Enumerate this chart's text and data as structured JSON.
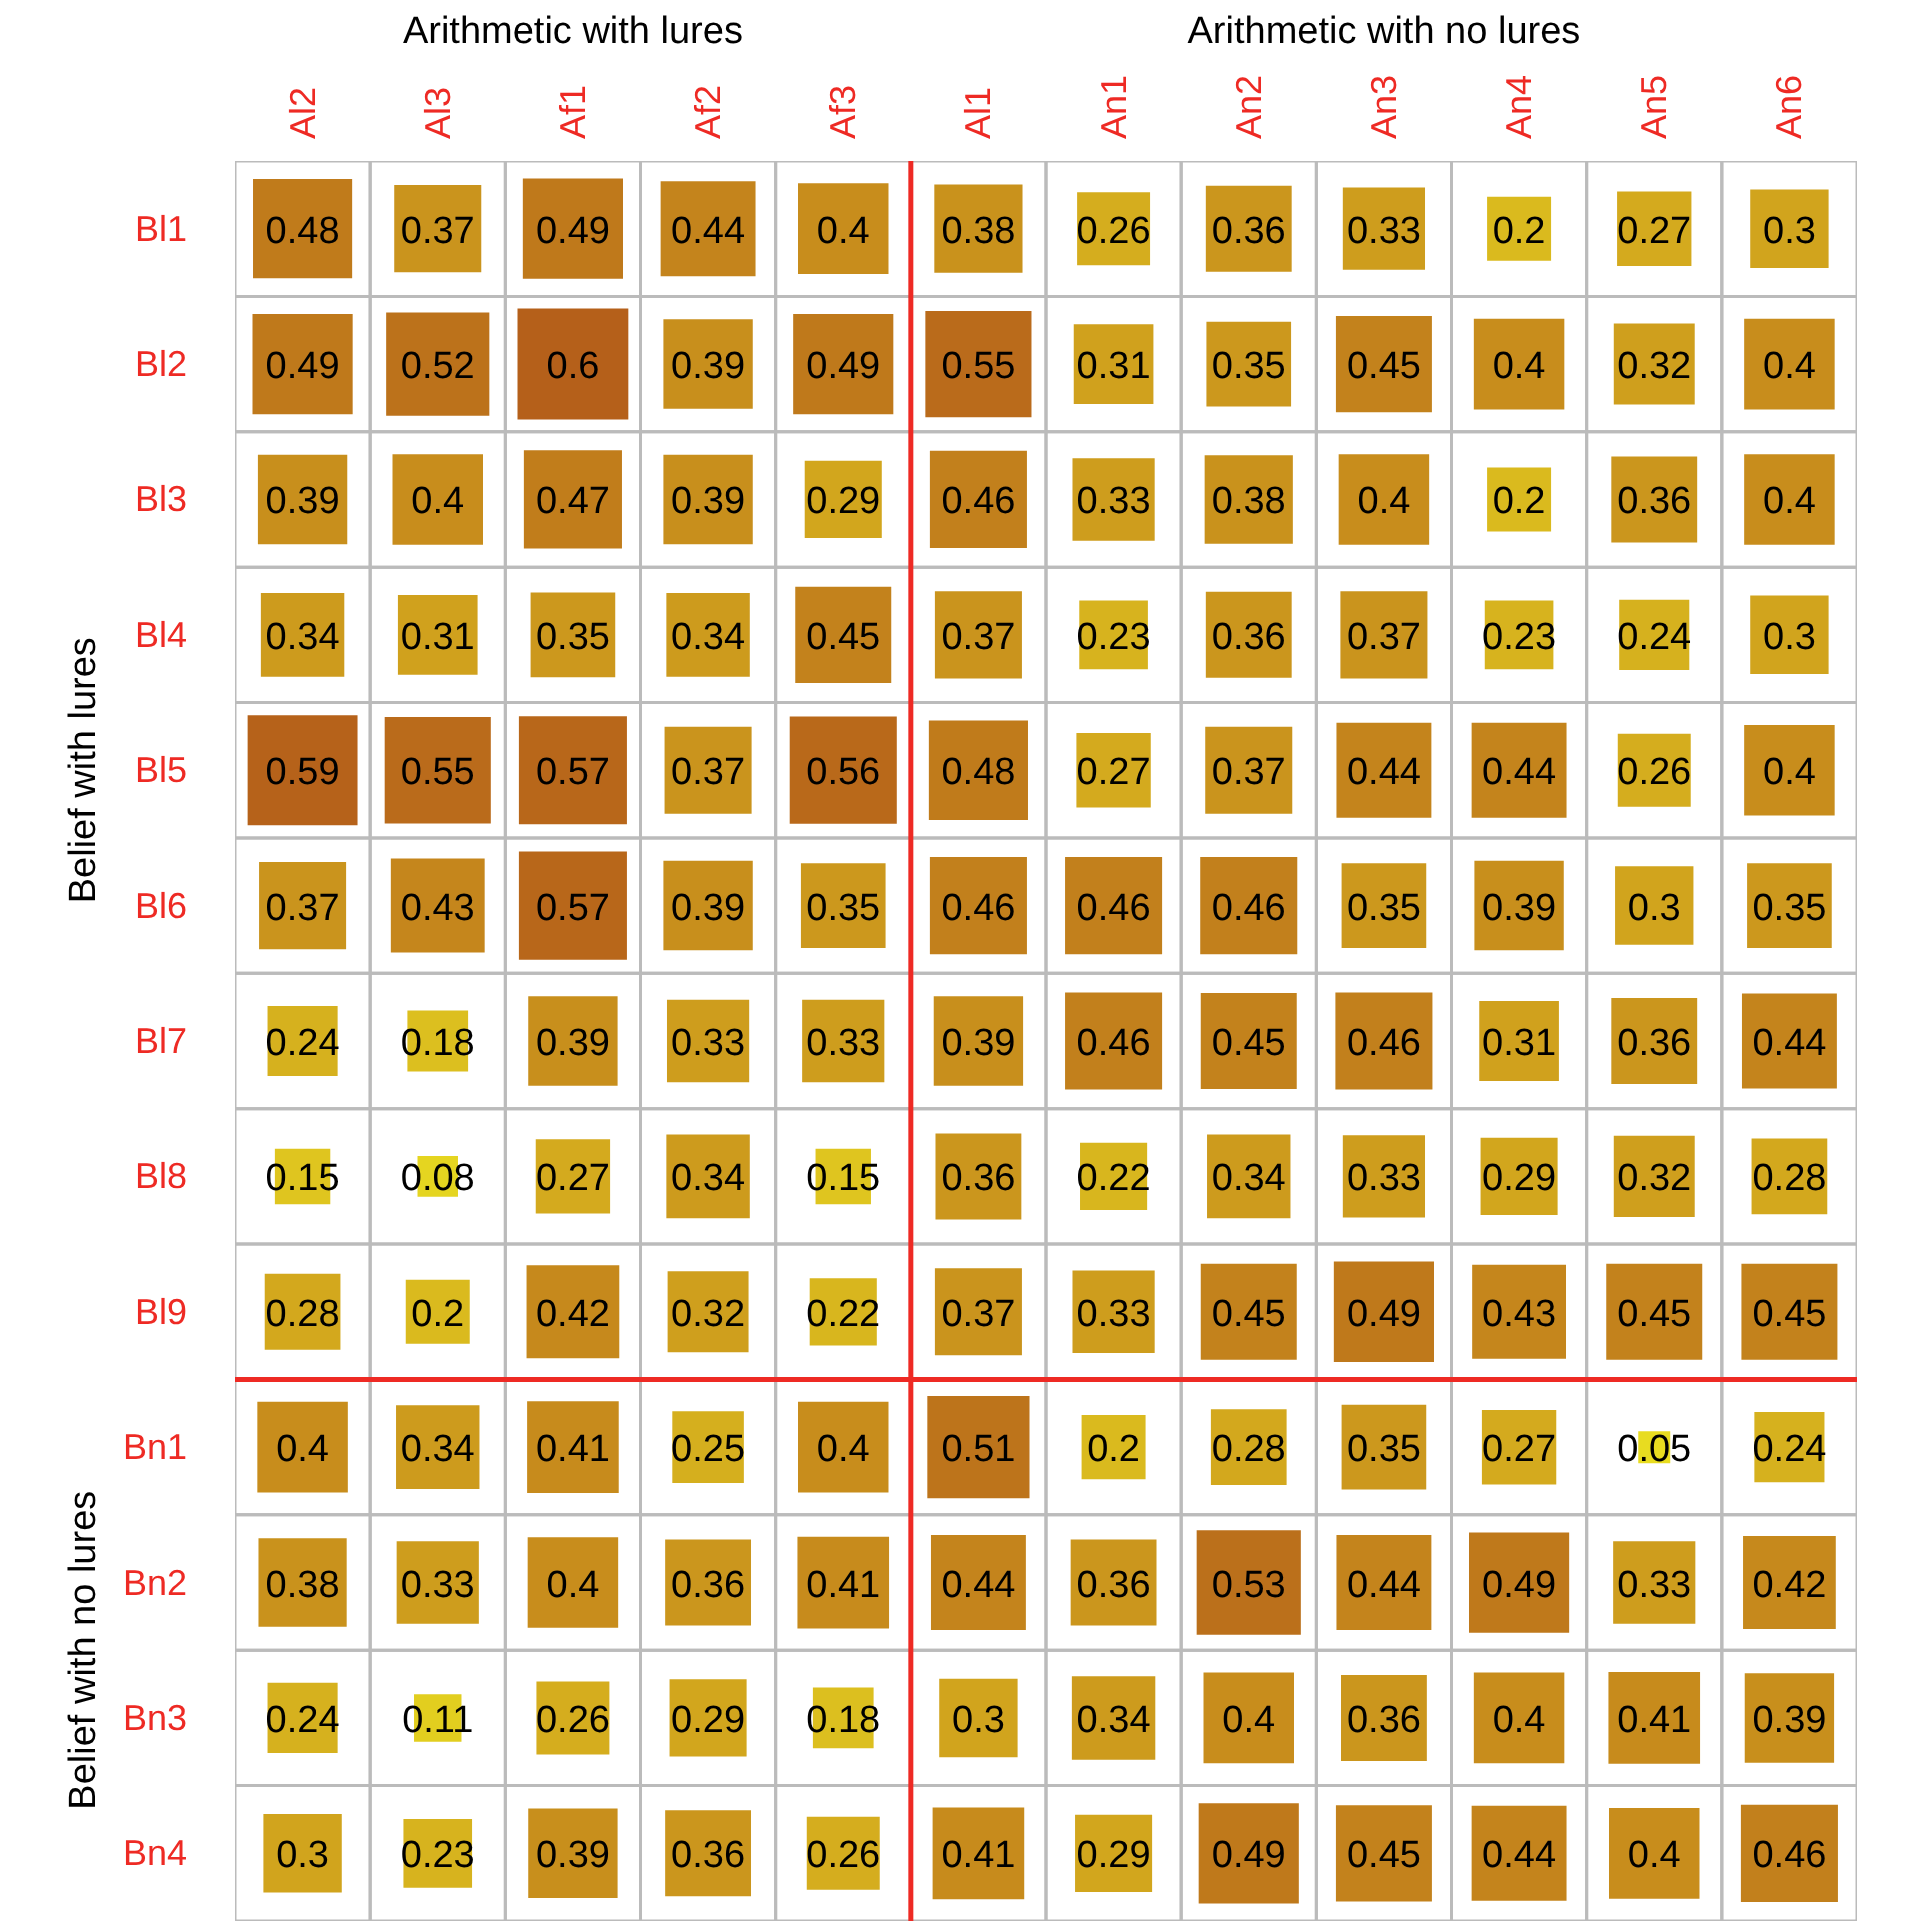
{
  "chart_data": {
    "type": "heatmap",
    "categories": [
      "Al2",
      "Al3",
      "Af1",
      "Af2",
      "Af3",
      "Al1",
      "An1",
      "An2",
      "An3",
      "An4",
      "An5",
      "An6"
    ],
    "y_categories": [
      "Bl1",
      "Bl2",
      "Bl3",
      "Bl4",
      "Bl5",
      "Bl6",
      "Bl7",
      "Bl8",
      "Bl9",
      "Bn1",
      "Bn2",
      "Bn3",
      "Bn4"
    ],
    "cells": [
      [
        0.48,
        0.37,
        0.49,
        0.44,
        0.4,
        0.38,
        0.26,
        0.36,
        0.33,
        0.2,
        0.27,
        0.3
      ],
      [
        0.49,
        0.52,
        0.6,
        0.39,
        0.49,
        0.55,
        0.31,
        0.35,
        0.45,
        0.4,
        0.32,
        0.4
      ],
      [
        0.39,
        0.4,
        0.47,
        0.39,
        0.29,
        0.46,
        0.33,
        0.38,
        0.4,
        0.2,
        0.36,
        0.4
      ],
      [
        0.34,
        0.31,
        0.35,
        0.34,
        0.45,
        0.37,
        0.23,
        0.36,
        0.37,
        0.23,
        0.24,
        0.3
      ],
      [
        0.59,
        0.55,
        0.57,
        0.37,
        0.56,
        0.48,
        0.27,
        0.37,
        0.44,
        0.44,
        0.26,
        0.4
      ],
      [
        0.37,
        0.43,
        0.57,
        0.39,
        0.35,
        0.46,
        0.46,
        0.46,
        0.35,
        0.39,
        0.3,
        0.35
      ],
      [
        0.24,
        0.18,
        0.39,
        0.33,
        0.33,
        0.39,
        0.46,
        0.45,
        0.46,
        0.31,
        0.36,
        0.44
      ],
      [
        0.15,
        0.08,
        0.27,
        0.34,
        0.15,
        0.36,
        0.22,
        0.34,
        0.33,
        0.29,
        0.32,
        0.28
      ],
      [
        0.28,
        0.2,
        0.42,
        0.32,
        0.22,
        0.37,
        0.33,
        0.45,
        0.49,
        0.43,
        0.45,
        0.45
      ],
      [
        0.4,
        0.34,
        0.41,
        0.25,
        0.4,
        0.51,
        0.2,
        0.28,
        0.35,
        0.27,
        0.05,
        0.24
      ],
      [
        0.38,
        0.33,
        0.4,
        0.36,
        0.41,
        0.44,
        0.36,
        0.53,
        0.44,
        0.49,
        0.33,
        0.42
      ],
      [
        0.24,
        0.11,
        0.26,
        0.29,
        0.18,
        0.3,
        0.34,
        0.4,
        0.36,
        0.4,
        0.41,
        0.39
      ],
      [
        0.3,
        0.23,
        0.39,
        0.36,
        0.26,
        0.41,
        0.29,
        0.49,
        0.45,
        0.44,
        0.4,
        0.46
      ]
    ],
    "annotations": [
      "Arithmetic with lures",
      "Arithmetic with no lures",
      "Belief with lures",
      "Belief with no lures"
    ],
    "data_labels": true,
    "grid": true
  }
}
